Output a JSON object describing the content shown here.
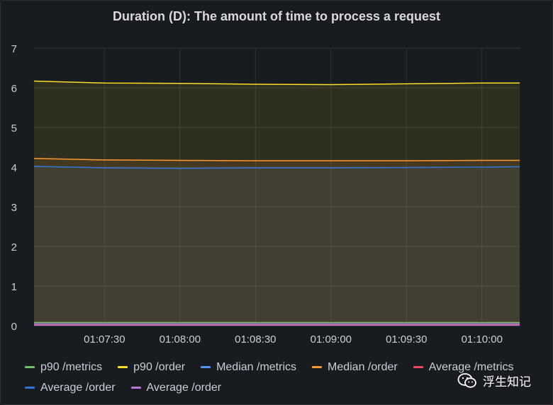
{
  "title": "Duration (D): The amount of time to process a request",
  "chart_data": {
    "type": "area",
    "title": "Duration (D): The amount of time to process a request",
    "x": [
      "01:07:02",
      "01:07:30",
      "01:08:00",
      "01:08:30",
      "01:09:00",
      "01:09:30",
      "01:10:00",
      "01:10:15"
    ],
    "x_tick_labels": [
      "01:07:30",
      "01:08:00",
      "01:08:30",
      "01:09:00",
      "01:09:30",
      "01:10:00"
    ],
    "y_tick_labels": [
      "0",
      "1",
      "2",
      "3",
      "4",
      "5",
      "6",
      "7"
    ],
    "ylim": [
      0,
      7
    ],
    "grid": true,
    "legend_position": "bottom",
    "series": [
      {
        "name": "p90 /metrics",
        "color": "#73bf69",
        "values": [
          0.08,
          0.08,
          0.08,
          0.08,
          0.08,
          0.08,
          0.08,
          0.08
        ]
      },
      {
        "name": "p90 /order",
        "color": "#fade2a",
        "values": [
          6.17,
          6.12,
          6.11,
          6.09,
          6.08,
          6.1,
          6.12,
          6.12
        ]
      },
      {
        "name": "Median /metrics",
        "color": "#5794f2",
        "values": [
          0.05,
          0.05,
          0.05,
          0.05,
          0.05,
          0.05,
          0.05,
          0.05
        ]
      },
      {
        "name": "Median /order",
        "color": "#ff9830",
        "values": [
          4.22,
          4.18,
          4.17,
          4.16,
          4.16,
          4.16,
          4.17,
          4.17
        ]
      },
      {
        "name": "Average /metrics",
        "color": "#f2495c",
        "values": [
          0.03,
          0.03,
          0.03,
          0.03,
          0.03,
          0.03,
          0.03,
          0.03
        ]
      },
      {
        "name": "Average /order",
        "color": "#3274d9",
        "values": [
          4.02,
          3.98,
          3.97,
          3.98,
          3.98,
          3.99,
          4.0,
          4.01
        ]
      },
      {
        "name": "Average /order",
        "color": "#b877d9",
        "values": [
          0.01,
          0.01,
          0.01,
          0.01,
          0.01,
          0.01,
          0.01,
          0.01
        ]
      }
    ]
  },
  "watermark": {
    "text": "浮生知记",
    "icon": "wechat-icon"
  }
}
